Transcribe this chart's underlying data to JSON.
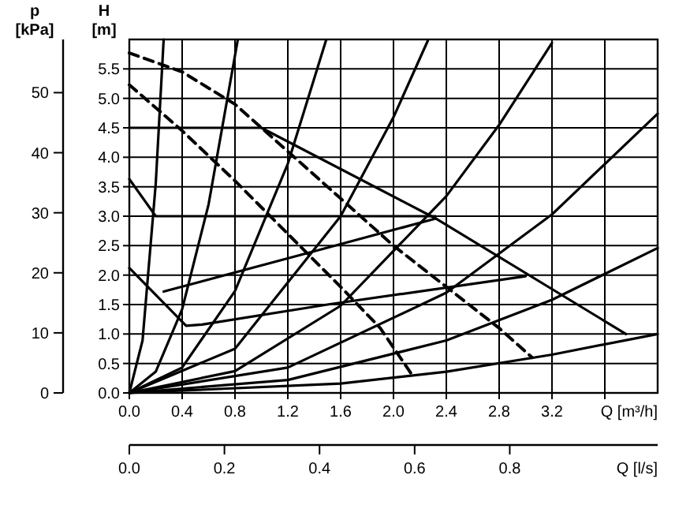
{
  "chart_data": {
    "type": "line",
    "xlabel": "Q [m³/h]",
    "ylabel": "H [m]",
    "y2label": "p [kPa]",
    "x2label": "Q [l/s]",
    "xlim": [
      0,
      4
    ],
    "xticks": [
      {
        "value": 0,
        "label": "0.0"
      },
      0.4,
      0.8,
      1.2,
      1.6,
      {
        "value": 2,
        "label": "2.0"
      },
      2.4,
      2.8,
      3.2,
      {
        "value": 3.6,
        "label": null
      }
    ],
    "ylim": [
      0,
      6
    ],
    "yticks": [
      {
        "value": 0,
        "label": "0.0"
      },
      0.5,
      {
        "value": 1,
        "label": "1.0"
      },
      1.5,
      {
        "value": 2,
        "label": "2.0"
      },
      2.5,
      {
        "value": 3,
        "label": "3.0"
      },
      3.5,
      {
        "value": 4,
        "label": "4.0"
      },
      4.5,
      {
        "value": 5,
        "label": "5.0"
      },
      5.5
    ],
    "y2lim": [
      0,
      58.86
    ],
    "y2ticks": [
      0,
      10,
      20,
      30,
      40,
      50
    ],
    "x2lim": [
      0,
      1.111
    ],
    "x2ticks": [
      {
        "value": 0,
        "label": "0.0"
      },
      0.2,
      0.4,
      0.6,
      0.8
    ],
    "grid": true,
    "series": [
      {
        "color": "#000000",
        "x": [
          0,
          1.0,
          2.32,
          3.76
        ],
        "values": [
          4.5,
          4.5,
          2.96,
          1.0
        ]
      },
      {
        "color": "#000000",
        "x": [
          0,
          0.2,
          2.32
        ],
        "values": [
          3.63,
          3.0,
          3.0
        ]
      },
      {
        "color": "#000000",
        "x": [
          0,
          0.43,
          0.55,
          1.5,
          3.0
        ],
        "values": [
          2.12,
          1.14,
          1.16,
          1.5,
          1.98
        ]
      },
      {
        "color": "#000000",
        "x": [
          0.26,
          1.41,
          2.32
        ],
        "values": [
          1.72,
          2.41,
          2.96
        ]
      },
      {
        "color": "#000000",
        "line_style": "dashed",
        "x": [
          0,
          0.4,
          0.8,
          1.2,
          1.6,
          2.0,
          2.4,
          2.8,
          3.05
        ],
        "values": [
          5.77,
          5.45,
          4.9,
          4.1,
          3.3,
          2.5,
          1.8,
          1.1,
          0.6
        ]
      },
      {
        "color": "#000000",
        "line_style": "dashed",
        "x": [
          0,
          0.4,
          0.8,
          1.2,
          1.6,
          1.9,
          2.13
        ],
        "values": [
          5.23,
          4.45,
          3.6,
          2.7,
          1.8,
          1.1,
          0.34
        ]
      },
      {
        "color": "#000000",
        "x": [
          0,
          0.1,
          0.2,
          0.26
        ],
        "values": [
          0,
          0.89,
          3.55,
          6.0
        ]
      },
      {
        "color": "#000000",
        "x": [
          0,
          0.2,
          0.4,
          0.6,
          0.82
        ],
        "values": [
          0,
          0.36,
          1.42,
          3.2,
          5.98
        ]
      },
      {
        "color": "#000000",
        "x": [
          0,
          0.4,
          0.8,
          1.2,
          1.49
        ],
        "values": [
          0,
          0.43,
          1.73,
          3.89,
          5.99
        ]
      },
      {
        "color": "#000000",
        "x": [
          0,
          0.8,
          1.6,
          2.0,
          2.26
        ],
        "values": [
          0,
          0.75,
          3.0,
          4.68,
          5.98
        ]
      },
      {
        "color": "#000000",
        "x": [
          0,
          0.8,
          1.6,
          2.4,
          2.8,
          3.2
        ],
        "values": [
          0,
          0.37,
          1.48,
          3.34,
          4.55,
          5.94
        ]
      },
      {
        "color": "#000000",
        "x": [
          0,
          1.2,
          2.4,
          3.2,
          4.0
        ],
        "values": [
          0,
          0.43,
          1.7,
          3.03,
          4.74
        ]
      },
      {
        "color": "#000000",
        "x": [
          0,
          1.2,
          2.4,
          3.2,
          4.0
        ],
        "values": [
          0,
          0.22,
          0.89,
          1.58,
          2.46
        ]
      },
      {
        "color": "#000000",
        "x": [
          0,
          1.6,
          2.4,
          3.2,
          4.0
        ],
        "values": [
          0,
          0.16,
          0.36,
          0.65,
          1.0
        ]
      }
    ]
  }
}
